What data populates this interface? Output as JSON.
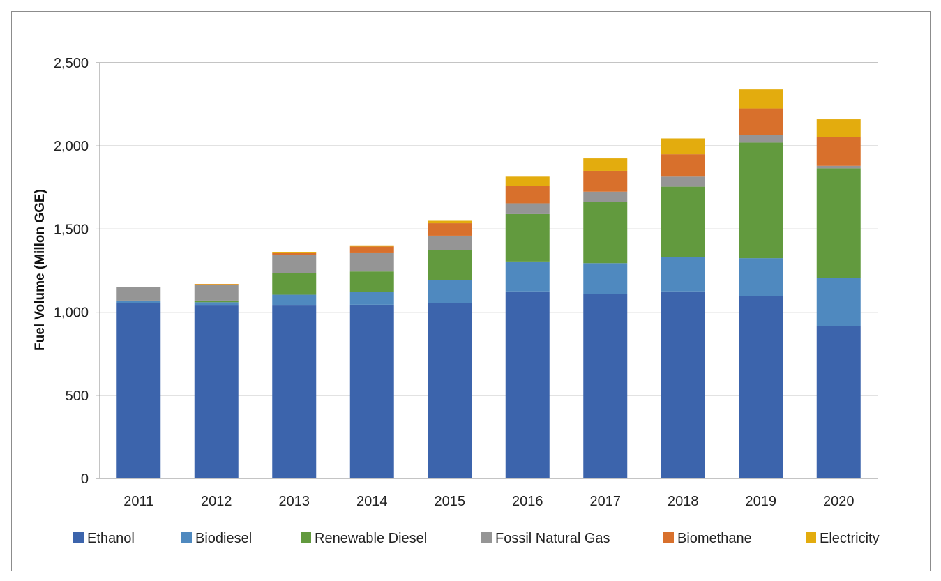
{
  "chart_data": {
    "type": "bar",
    "stacked": true,
    "ylabel": "Fuel Volume (Millon GGE)",
    "xlabel": "",
    "ylim": [
      0,
      2500
    ],
    "yticks": [
      0,
      500,
      1000,
      1500,
      2000,
      2500
    ],
    "ytick_labels": [
      "0",
      "500",
      "1,000",
      "1,500",
      "2,000",
      "2,500"
    ],
    "grid": true,
    "legend_position": "bottom",
    "categories": [
      "2011",
      "2012",
      "2013",
      "2014",
      "2015",
      "2016",
      "2017",
      "2018",
      "2019",
      "2020"
    ],
    "series": [
      {
        "name": "Ethanol",
        "color": "#3c64ac",
        "values": [
          1055,
          1040,
          1040,
          1045,
          1055,
          1125,
          1110,
          1125,
          1095,
          915
        ]
      },
      {
        "name": "Biodiesel",
        "color": "#4f89bf",
        "values": [
          12,
          20,
          65,
          75,
          140,
          180,
          185,
          205,
          230,
          290
        ]
      },
      {
        "name": "Renewable Diesel",
        "color": "#629a3e",
        "values": [
          3,
          10,
          130,
          125,
          180,
          285,
          370,
          425,
          695,
          660
        ]
      },
      {
        "name": "Fossil Natural Gas",
        "color": "#959595",
        "values": [
          80,
          95,
          110,
          110,
          85,
          65,
          60,
          60,
          45,
          15
        ]
      },
      {
        "name": "Biomethane",
        "color": "#d8702c",
        "values": [
          2,
          3,
          10,
          40,
          75,
          105,
          125,
          135,
          160,
          175
        ]
      },
      {
        "name": "Electricity",
        "color": "#e3ac0e",
        "values": [
          0,
          2,
          5,
          7,
          15,
          55,
          75,
          95,
          115,
          105
        ]
      }
    ]
  }
}
